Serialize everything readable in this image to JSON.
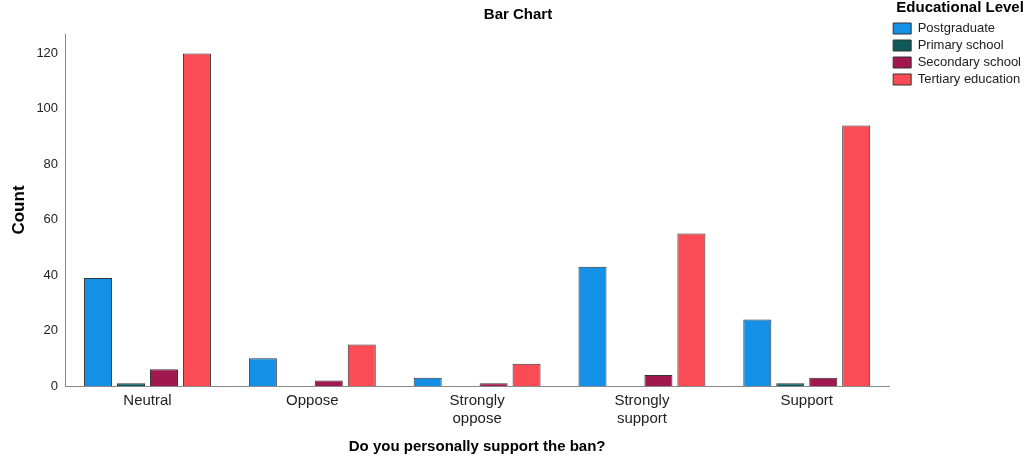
{
  "chart_data": {
    "type": "bar",
    "title": "Bar Chart",
    "xlabel": "Do you personally support the ban?",
    "ylabel": "Count",
    "legend_title": "Educational Level",
    "categories": [
      "Neutral",
      "Oppose",
      "Strongly oppose",
      "Strongly support",
      "Support"
    ],
    "series": [
      {
        "name": "Postgraduate",
        "color": "#1490e6",
        "values": [
          39,
          10,
          3,
          43,
          24
        ]
      },
      {
        "name": "Primary school",
        "color": "#0e5a5a",
        "values": [
          1,
          null,
          null,
          null,
          1
        ]
      },
      {
        "name": "Secondary school",
        "color": "#a0184e",
        "values": [
          6,
          2,
          1,
          4,
          3
        ]
      },
      {
        "name": "Tertiary education",
        "color": "#fb4c55",
        "values": [
          120,
          15,
          8,
          55,
          94
        ]
      }
    ],
    "ylim": [
      0,
      127
    ],
    "yticks": [
      0,
      20,
      40,
      60,
      80,
      100,
      120
    ],
    "grid": false,
    "legend": "top right"
  }
}
